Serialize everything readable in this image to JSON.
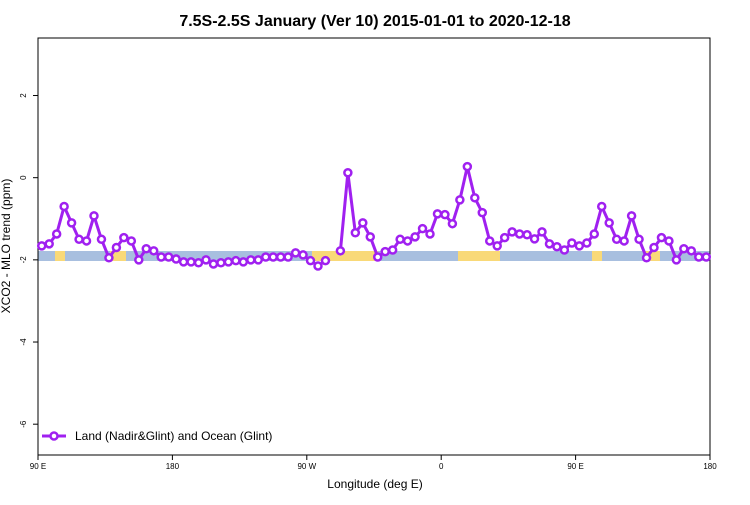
{
  "chart_data": {
    "type": "line",
    "title": "7.5S-2.5S January (Ver 10)   2015-01-01 to 2020-12-18",
    "x_label": "Longitude (deg E)",
    "y_label": "XCO2 - MLO trend (ppm)",
    "x": [
      92.5,
      97.5,
      102.5,
      107.5,
      112.5,
      117.5,
      122.5,
      127.5,
      132.5,
      137.5,
      142.5,
      147.5,
      152.5,
      157.5,
      162.5,
      167.5,
      172.5,
      177.5,
      182.5,
      187.5,
      192.5,
      197.5,
      202.5,
      207.5,
      212.5,
      217.5,
      222.5,
      227.5,
      232.5,
      237.5,
      242.5,
      247.5,
      252.5,
      257.5,
      262.5,
      267.5,
      272.5,
      277.5,
      282.5,
      287.5,
      292.5,
      297.5,
      302.5,
      307.5,
      312.5,
      317.5,
      322.5,
      327.5,
      332.5,
      337.5,
      342.5,
      347.5,
      352.5,
      357.5,
      362.5,
      367.5,
      372.5,
      377.5,
      382.5,
      387.5,
      392.5,
      397.5,
      402.5,
      407.5,
      412.5,
      417.5,
      422.5,
      427.5,
      432.5,
      437.5,
      442.5,
      447.5,
      452.5,
      457.5,
      462.5,
      467.5,
      472.5,
      477.5,
      482.5,
      487.5,
      492.5,
      497.5,
      502.5,
      507.5,
      512.5,
      517.5,
      522.5,
      527.5,
      532.5,
      537.5
    ],
    "series": [
      {
        "name": "Land (Nadir&Glint) and Ocean (Glint)",
        "color": "#a020f0",
        "values": [
          -1.66,
          -1.61,
          -1.37,
          -0.7,
          -1.1,
          -1.5,
          -1.54,
          -0.93,
          -1.5,
          -1.95,
          -1.7,
          -1.46,
          -1.54,
          -2.0,
          -1.73,
          -1.78,
          -1.93,
          -1.93,
          -1.98,
          -2.05,
          -2.05,
          -2.07,
          -2.0,
          -2.1,
          -2.07,
          -2.05,
          -2.02,
          -2.05,
          -2.0,
          -2.0,
          -1.93,
          -1.93,
          -1.93,
          -1.93,
          -1.83,
          -1.88,
          -2.02,
          -2.15,
          -2.02,
          null,
          -1.78,
          0.12,
          -1.34,
          -1.1,
          -1.44,
          -1.93,
          -1.8,
          -1.76,
          -1.5,
          -1.54,
          -1.44,
          -1.24,
          -1.37,
          -0.88,
          -0.9,
          -1.12,
          -0.54,
          0.27,
          -0.49,
          -0.85,
          -1.54,
          -1.66,
          -1.46,
          -1.32,
          -1.37,
          -1.39,
          -1.49,
          -1.32,
          -1.61,
          -1.68,
          -1.76,
          -1.59,
          -1.66,
          -1.59,
          -1.37,
          -0.7,
          -1.1,
          -1.5,
          -1.54,
          -0.93,
          -1.5,
          -1.95,
          -1.7,
          -1.46,
          -1.54,
          -2.0,
          -1.73,
          -1.78,
          -1.93,
          -1.93
        ]
      }
    ],
    "xlim": [
      90,
      540
    ],
    "xticks": [
      {
        "value": 90,
        "label": "90 E"
      },
      180,
      {
        "value": 270,
        "label": "90 W"
      },
      {
        "value": 360,
        "label": "0"
      },
      {
        "value": 450,
        "label": "90 E"
      },
      {
        "value": 540,
        "label": "180"
      }
    ],
    "ylim": [
      -6.75,
      3.4
    ],
    "yticks": [
      -6,
      -4,
      -2,
      0,
      2
    ],
    "legend": "bottom-left"
  }
}
